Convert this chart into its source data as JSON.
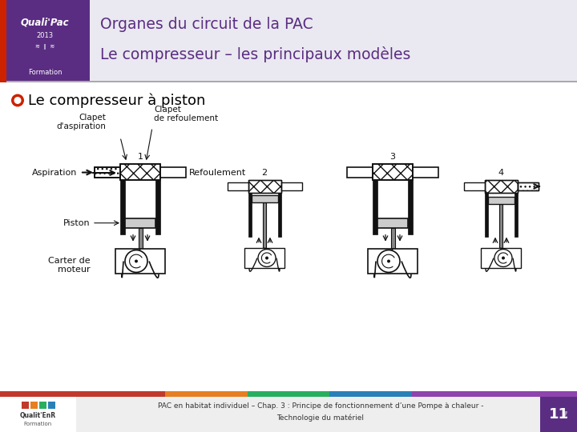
{
  "title_line1": "Organes du circuit de la PAC",
  "title_line2": "Le compresseur – les principaux modèles",
  "section_title": "Le compresseur à piston",
  "label_clapet_asp": "Clapet\nd'aspiration",
  "label_clapet_ref": "Clapet\nde refoulement",
  "label_aspiration": "Aspiration",
  "label_refoulement": "Refoulement",
  "label_piston": "Piston",
  "label_carter": "Carter de\nmoteur",
  "footer_text1": "PAC en habitat individuel – Chap. 3 : Principe de fonctionnement d’une Pompe à chaleur -",
  "footer_text2": "Technologie du matériel",
  "page_number": "11",
  "header_bg": "#eae8f0",
  "header_title_color": "#5a2d82",
  "section_bullet_color": "#cc2200",
  "body_bg": "#ffffff",
  "footer_bg": "#eeeeee",
  "logo_purple": "#5a2d82",
  "logo_red": "#cc2200",
  "bar_colors": [
    "#c0392b",
    "#c0392b",
    "#e67e22",
    "#27ae60",
    "#2980b9",
    "#8e44ad",
    "#8e44ad"
  ],
  "footer_sq_colors": [
    "#c0392b",
    "#e67e22",
    "#27ae60",
    "#2980b9"
  ]
}
